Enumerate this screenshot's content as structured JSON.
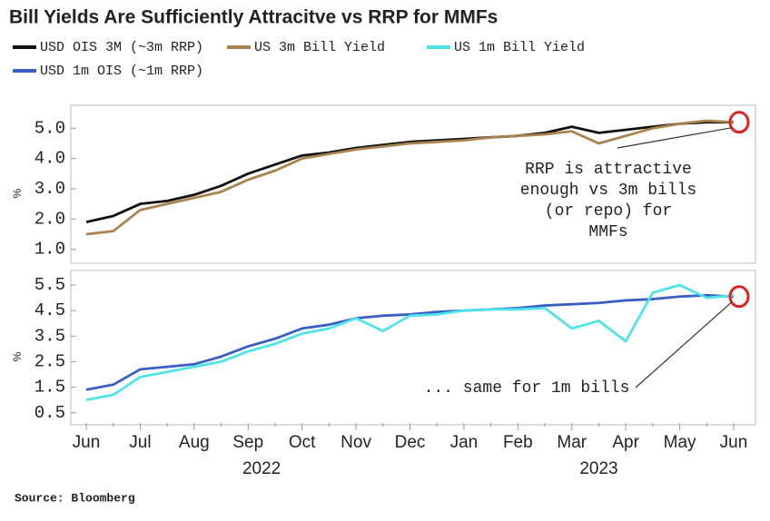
{
  "title": "Bill Yields Are Sufficiently Attracitve vs RRP for MMFs",
  "source": "Source: Bloomberg",
  "years": [
    "2022",
    "2023"
  ],
  "chart_data": [
    {
      "type": "line",
      "y_label": "%",
      "categories": [
        "Jun",
        null,
        "Jul",
        null,
        "Aug",
        null,
        "Sep",
        null,
        "Oct",
        null,
        "Nov",
        null,
        "Dec",
        null,
        "Jan",
        null,
        "Feb",
        null,
        "Mar",
        null,
        "Apr",
        null,
        "May",
        null,
        "Jun"
      ],
      "series": [
        {
          "name": "USD OIS 3M (~3m RRP)",
          "color": "#111111",
          "values": [
            1.9,
            2.1,
            2.5,
            2.6,
            2.8,
            3.1,
            3.5,
            3.8,
            4.1,
            4.2,
            4.35,
            4.45,
            4.55,
            4.6,
            4.65,
            4.7,
            4.75,
            4.85,
            5.05,
            4.85,
            4.95,
            5.05,
            5.15,
            5.2,
            5.2
          ]
        },
        {
          "name": "US 3m Bill Yield",
          "color": "#a8834e",
          "values": [
            1.5,
            1.6,
            2.3,
            2.5,
            2.7,
            2.9,
            3.3,
            3.6,
            4.0,
            4.15,
            4.3,
            4.4,
            4.5,
            4.55,
            4.6,
            4.7,
            4.75,
            4.8,
            4.9,
            4.5,
            4.75,
            5.0,
            5.15,
            5.25,
            5.2
          ]
        }
      ],
      "ylim": [
        0.6,
        5.7
      ],
      "yticks": [
        {
          "value": 1,
          "label": "1.0"
        },
        {
          "value": 2,
          "label": "2.0"
        },
        {
          "value": 3,
          "label": "3.0"
        },
        {
          "value": 4,
          "label": "4.0"
        },
        {
          "value": 5,
          "label": "5.0"
        }
      ],
      "grid": false,
      "annotation": [
        "RRP is attractive",
        "enough vs 3m bills",
        "(or repo) for",
        "MMFs"
      ]
    },
    {
      "type": "line",
      "y_label": "%",
      "categories": [
        "Jun",
        null,
        "Jul",
        null,
        "Aug",
        null,
        "Sep",
        null,
        "Oct",
        null,
        "Nov",
        null,
        "Dec",
        null,
        "Jan",
        null,
        "Feb",
        null,
        "Mar",
        null,
        "Apr",
        null,
        "May",
        null,
        "Jun"
      ],
      "series": [
        {
          "name": "USD 1m OIS (~1m RRP)",
          "color": "#3a5fc4",
          "values": [
            1.4,
            1.6,
            2.2,
            2.3,
            2.4,
            2.7,
            3.1,
            3.4,
            3.8,
            3.95,
            4.2,
            4.3,
            4.35,
            4.45,
            4.5,
            4.55,
            4.6,
            4.7,
            4.75,
            4.8,
            4.9,
            4.95,
            5.05,
            5.1,
            5.05
          ]
        },
        {
          "name": "US 1m Bill Yield",
          "color": "#4fe3ea",
          "values": [
            1.0,
            1.2,
            1.9,
            2.1,
            2.3,
            2.5,
            2.9,
            3.2,
            3.6,
            3.8,
            4.2,
            3.7,
            4.3,
            4.35,
            4.5,
            4.55,
            4.55,
            4.6,
            3.8,
            4.1,
            3.3,
            5.2,
            5.5,
            5.0,
            5.1
          ]
        }
      ],
      "ylim": [
        0.1,
        6.0
      ],
      "yticks": [
        0.5,
        1.5,
        2.5,
        3.5,
        4.5,
        5.5
      ],
      "grid": false,
      "annotation": [
        "... same for 1m bills"
      ]
    }
  ]
}
